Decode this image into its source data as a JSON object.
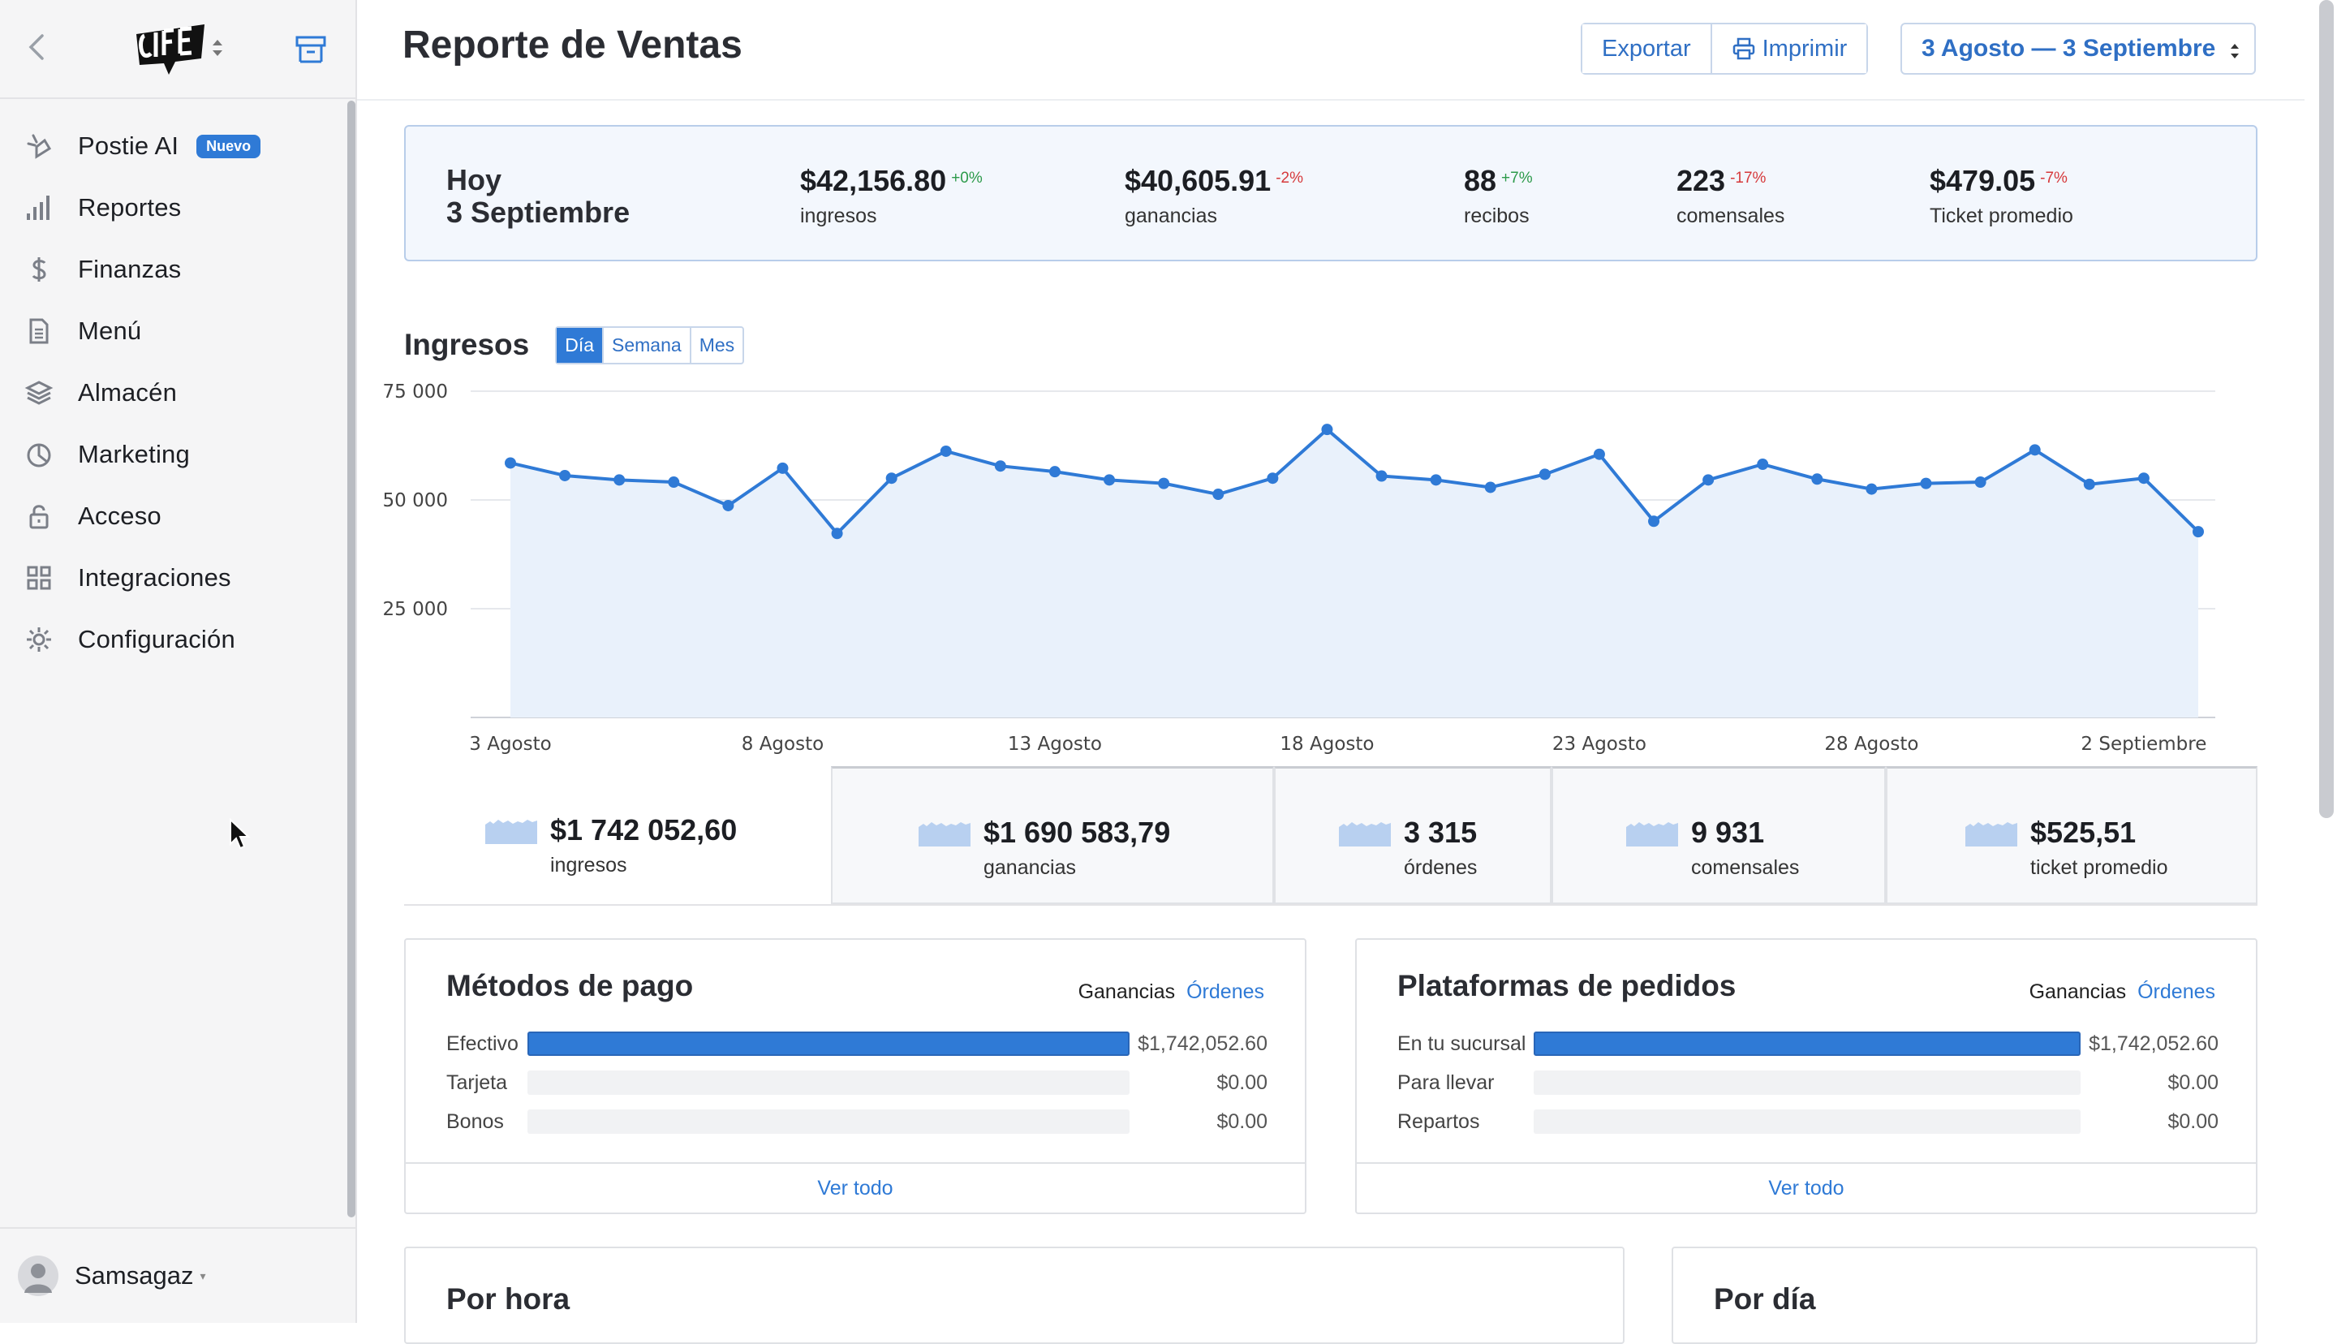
{
  "sidebar": {
    "user": "Samsagaz",
    "items": [
      {
        "label": "Postie AI",
        "icon": "ai-sparkle-icon",
        "badge": "Nuevo"
      },
      {
        "label": "Reportes",
        "icon": "bar-chart-icon"
      },
      {
        "label": "Finanzas",
        "icon": "dollar-icon"
      },
      {
        "label": "Menú",
        "icon": "document-icon"
      },
      {
        "label": "Almacén",
        "icon": "layers-icon"
      },
      {
        "label": "Marketing",
        "icon": "pie-chart-icon"
      },
      {
        "label": "Acceso",
        "icon": "lock-icon"
      },
      {
        "label": "Integraciones",
        "icon": "grid-icon"
      },
      {
        "label": "Configuración",
        "icon": "gear-icon"
      }
    ]
  },
  "header": {
    "title": "Reporte de Ventas",
    "export_label": "Exportar",
    "print_label": "Imprimir",
    "date_range": "3 Agosto — 3 Septiembre"
  },
  "today": {
    "label_line1": "Hoy",
    "label_line2": "3 Septiembre",
    "stats": [
      {
        "value": "$42,156.80",
        "delta": "+0%",
        "delta_color": "#2c9a4a",
        "label": "ingresos"
      },
      {
        "value": "$40,605.91",
        "delta": "-2%",
        "delta_color": "#d6393b",
        "label": "ganancias"
      },
      {
        "value": "88",
        "delta": "+7%",
        "delta_color": "#2c9a4a",
        "label": "recibos"
      },
      {
        "value": "223",
        "delta": "-17%",
        "delta_color": "#d6393b",
        "label": "comensales"
      },
      {
        "value": "$479.05",
        "delta": "-7%",
        "delta_color": "#d6393b",
        "label": "Ticket promedio"
      }
    ]
  },
  "income_chart": {
    "title": "Ingresos",
    "tabs": [
      "Día",
      "Semana",
      "Mes"
    ],
    "active_tab": "Día"
  },
  "chart_data": {
    "type": "area",
    "title": "Ingresos",
    "x_tick_labels": [
      "3 Agosto",
      "8 Agosto",
      "13 Agosto",
      "18 Agosto",
      "23 Agosto",
      "28 Agosto",
      "2 Septiembre"
    ],
    "x_ticks_day_index": [
      0,
      5,
      10,
      15,
      20,
      25,
      30
    ],
    "y_tick_labels": [
      "75 000",
      "50 000",
      "25 000"
    ],
    "y_ticks": [
      75000,
      50000,
      25000
    ],
    "ylim": [
      0,
      75000
    ],
    "grid": true,
    "color": "#2f7ad6",
    "series": [
      {
        "values": [
          58500,
          55600,
          54600,
          54100,
          48700,
          57300,
          42300,
          55000,
          61200,
          57800,
          56500,
          54600,
          53800,
          51300,
          55000,
          66200,
          55500,
          54600,
          52900,
          55900,
          60500,
          45100,
          54600,
          58200,
          54800,
          52500,
          53800,
          54100,
          61500,
          53600,
          55000,
          42700
        ]
      }
    ]
  },
  "totals": [
    {
      "value": "$1 742 052,60",
      "label": "ingresos"
    },
    {
      "value": "$1 690 583,79",
      "label": "ganancias"
    },
    {
      "value": "3 315",
      "label": "órdenes"
    },
    {
      "value": "9 931",
      "label": "comensales"
    },
    {
      "value": "$525,51",
      "label": "ticket promedio"
    }
  ],
  "payment_methods": {
    "title": "Métodos de pago",
    "toggle_a": "Ganancias",
    "toggle_b": "Órdenes",
    "rows": [
      {
        "label": "Efectivo",
        "value": "$1,742,052.60",
        "fraction": 1.0
      },
      {
        "label": "Tarjeta",
        "value": "$0.00",
        "fraction": 0
      },
      {
        "label": "Bonos",
        "value": "$0.00",
        "fraction": 0
      }
    ],
    "footer": "Ver todo"
  },
  "order_platforms": {
    "title": "Plataformas de pedidos",
    "toggle_a": "Ganancias",
    "toggle_b": "Órdenes",
    "rows": [
      {
        "label": "En tu sucursal",
        "value": "$1,742,052.60",
        "fraction": 1.0
      },
      {
        "label": "Para llevar",
        "value": "$0.00",
        "fraction": 0
      },
      {
        "label": "Repartos",
        "value": "$0.00",
        "fraction": 0
      }
    ],
    "footer": "Ver todo"
  },
  "by_hour": {
    "title": "Por hora"
  },
  "by_day": {
    "title": "Por día"
  }
}
